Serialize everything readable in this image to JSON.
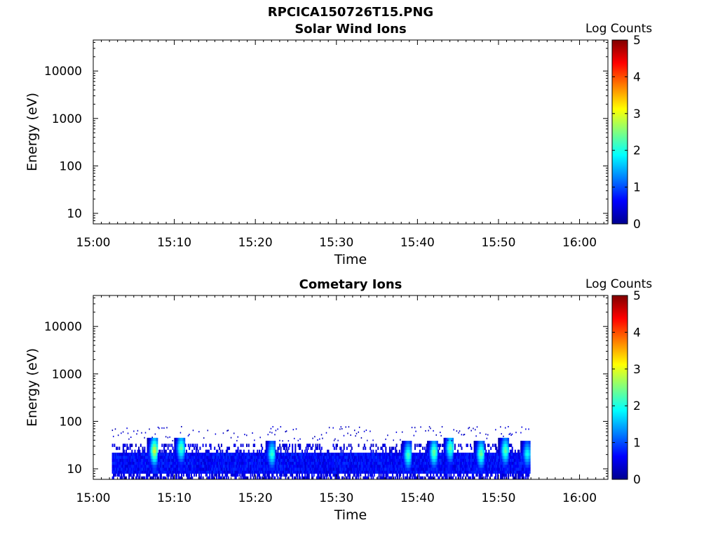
{
  "figure_title": "RPCICA150726T15.PNG",
  "colors": {
    "axis": "#000000",
    "colormap": "jet"
  },
  "chart_data": [
    {
      "type": "heatmap",
      "title": "Solar Wind Ions",
      "xlabel": "Time",
      "ylabel": "Energy (eV)",
      "xtick_labels": [
        "15:00",
        "15:10",
        "15:20",
        "15:30",
        "15:40",
        "15:50",
        "16:00"
      ],
      "xtick_minutes": [
        0,
        10,
        20,
        30,
        40,
        50,
        60
      ],
      "xlim_minutes": [
        0,
        63.5
      ],
      "ytick_labels": [
        "10",
        "100",
        "1000",
        "10000"
      ],
      "ytick_values": [
        10,
        100,
        1000,
        10000
      ],
      "y_scale": "log",
      "ylim": [
        6,
        45000
      ],
      "colorbar": {
        "label": "Log Counts",
        "ticks": [
          "0",
          "1",
          "2",
          "3",
          "4",
          "5"
        ],
        "range": [
          0,
          5
        ]
      },
      "data": "empty"
    },
    {
      "type": "heatmap",
      "title": "Cometary Ions",
      "xlabel": "Time",
      "ylabel": "Energy (eV)",
      "xtick_labels": [
        "15:00",
        "15:10",
        "15:20",
        "15:30",
        "15:40",
        "15:50",
        "16:00"
      ],
      "xtick_minutes": [
        0,
        10,
        20,
        30,
        40,
        50,
        60
      ],
      "xlim_minutes": [
        0,
        63.5
      ],
      "ytick_labels": [
        "10",
        "100",
        "1000",
        "10000"
      ],
      "ytick_values": [
        10,
        100,
        1000,
        10000
      ],
      "y_scale": "log",
      "ylim": [
        6,
        45000
      ],
      "colorbar": {
        "label": "Log Counts",
        "ticks": [
          "0",
          "1",
          "2",
          "3",
          "4",
          "5"
        ],
        "range": [
          0,
          5
        ]
      },
      "data_time_range_minutes": [
        2.3,
        53.8
      ],
      "band": {
        "baseline_energy_range_eV": [
          10,
          20
        ],
        "sporadic_counts_up_to_eV": 80,
        "bursts": [
          {
            "time_minutes": 7.5,
            "peak_energy_eV": 35,
            "peak_log_counts": 3.0
          },
          {
            "time_minutes": 10.8,
            "peak_energy_eV": 40,
            "peak_log_counts": 2.4
          },
          {
            "time_minutes": 22.0,
            "peak_energy_eV": 30,
            "peak_log_counts": 2.2
          },
          {
            "time_minutes": 38.8,
            "peak_energy_eV": 28,
            "peak_log_counts": 2.3
          },
          {
            "time_minutes": 42.0,
            "peak_energy_eV": 32,
            "peak_log_counts": 2.5
          },
          {
            "time_minutes": 44.0,
            "peak_energy_eV": 40,
            "peak_log_counts": 2.4
          },
          {
            "time_minutes": 47.8,
            "peak_energy_eV": 30,
            "peak_log_counts": 2.5
          },
          {
            "time_minutes": 50.8,
            "peak_energy_eV": 35,
            "peak_log_counts": 2.4
          },
          {
            "time_minutes": 53.5,
            "peak_energy_eV": 30,
            "peak_log_counts": 2.0
          }
        ]
      }
    }
  ]
}
